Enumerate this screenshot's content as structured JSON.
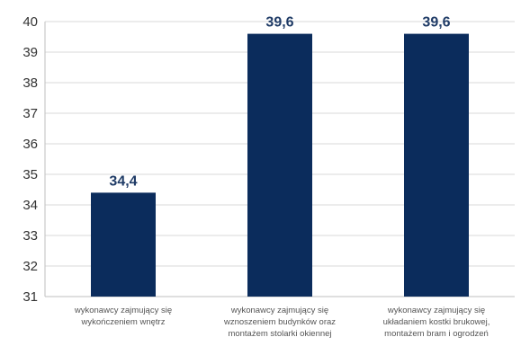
{
  "chart_data": {
    "type": "bar",
    "categories": [
      [
        "wykonawcy zajmujący się",
        "wykończeniem wnętrz"
      ],
      [
        "wykonawcy zajmujący się",
        "wznoszeniem budynków oraz",
        "montażem stolarki okiennej"
      ],
      [
        "wykonawcy zajmujący się",
        "układaniem kostki brukowej,",
        "montażem bram i ogrodzeń"
      ]
    ],
    "values": [
      34.4,
      39.6,
      39.6
    ],
    "value_labels": [
      "34,4",
      "39,6",
      "39,6"
    ],
    "ylim": [
      31,
      40
    ],
    "yticks": [
      31,
      32,
      33,
      34,
      35,
      36,
      37,
      38,
      39,
      40
    ],
    "title": "",
    "xlabel": "",
    "ylabel": "",
    "grid": true,
    "colors": {
      "bar": "#0b2c5c",
      "data_label": "#1f3b66",
      "grid": "#d9d9d9",
      "axis": "#bfbfbf"
    }
  }
}
